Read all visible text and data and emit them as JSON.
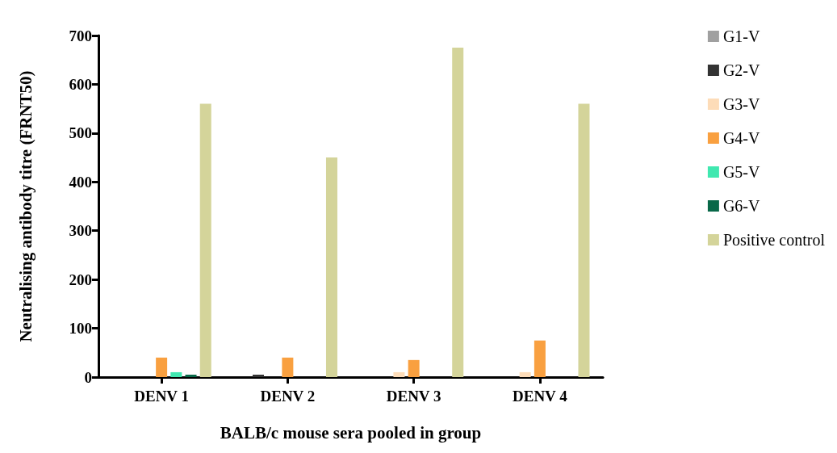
{
  "chart_data": {
    "type": "bar",
    "xlabel": "BALB/c mouse sera pooled in group",
    "ylabel": "Neutralising antibody titre (FRNT50)",
    "categories": [
      "DENV 1",
      "DENV 2",
      "DENV 3",
      "DENV 4"
    ],
    "series": [
      {
        "name": "G1-V",
        "color": "#a0a0a0",
        "values": [
          0,
          0,
          0,
          0
        ]
      },
      {
        "name": "G2-V",
        "color": "#333333",
        "values": [
          0,
          5,
          0,
          0
        ]
      },
      {
        "name": "G3-V",
        "color": "#fddcb8",
        "values": [
          0,
          0,
          10,
          10
        ]
      },
      {
        "name": "G4-V",
        "color": "#f9a040",
        "values": [
          40,
          40,
          35,
          75
        ]
      },
      {
        "name": "G5-V",
        "color": "#40e8b0",
        "values": [
          10,
          0,
          0,
          0
        ]
      },
      {
        "name": "G6-V",
        "color": "#086848",
        "values": [
          5,
          0,
          0,
          0
        ]
      },
      {
        "name": "Positive control",
        "color": "#d4d49a",
        "values": [
          560,
          450,
          675,
          560
        ]
      }
    ],
    "ylim": [
      0,
      700
    ],
    "yticks": [
      0,
      100,
      200,
      300,
      400,
      500,
      600,
      700
    ],
    "grid": false,
    "legend": "right"
  }
}
